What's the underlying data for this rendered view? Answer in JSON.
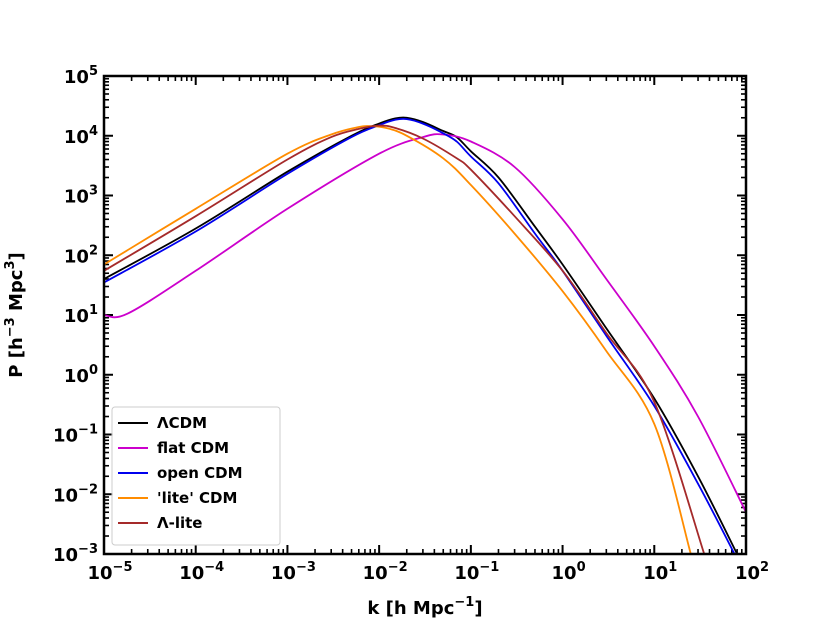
{
  "chart_data": {
    "type": "line",
    "xscale": "log",
    "yscale": "log",
    "xlim": [
      1e-05,
      100
    ],
    "ylim": [
      0.001,
      100000
    ],
    "xlabel": "k [h Mpc^-1]",
    "ylabel": "P [h^-3 Mpc^3]",
    "xlabel_parts": {
      "base": "k [h Mpc",
      "sup": "−1",
      "tail": "]"
    },
    "ylabel_parts": {
      "base": "P [h",
      "sup1": "−3",
      "mid": " Mpc",
      "sup2": "3",
      "tail": "]"
    },
    "xticks": [
      {
        "value": 1e-05,
        "base": "10",
        "exp": "−5"
      },
      {
        "value": 0.0001,
        "base": "10",
        "exp": "−4"
      },
      {
        "value": 0.001,
        "base": "10",
        "exp": "−3"
      },
      {
        "value": 0.01,
        "base": "10",
        "exp": "−2"
      },
      {
        "value": 0.1,
        "base": "10",
        "exp": "−1"
      },
      {
        "value": 1,
        "base": "10",
        "exp": "0"
      },
      {
        "value": 10,
        "base": "10",
        "exp": "1"
      },
      {
        "value": 100,
        "base": "10",
        "exp": "2"
      }
    ],
    "yticks": [
      {
        "value": 0.001,
        "base": "10",
        "exp": "−3"
      },
      {
        "value": 0.01,
        "base": "10",
        "exp": "−2"
      },
      {
        "value": 0.1,
        "base": "10",
        "exp": "−1"
      },
      {
        "value": 1,
        "base": "10",
        "exp": "0"
      },
      {
        "value": 10,
        "base": "10",
        "exp": "1"
      },
      {
        "value": 100,
        "base": "10",
        "exp": "2"
      },
      {
        "value": 1000,
        "base": "10",
        "exp": "3"
      },
      {
        "value": 10000,
        "base": "10",
        "exp": "4"
      },
      {
        "value": 100000,
        "base": "10",
        "exp": "5"
      }
    ],
    "grid": false,
    "legend_position": "lower-left",
    "series": [
      {
        "name": "ΛCDM",
        "color": "#000000",
        "points": [
          [
            1e-05,
            40
          ],
          [
            0.0001,
            280
          ],
          [
            0.001,
            2500
          ],
          [
            0.005,
            10000
          ],
          [
            0.01,
            16000
          ],
          [
            0.015,
            19500
          ],
          [
            0.02,
            20000
          ],
          [
            0.03,
            17000
          ],
          [
            0.05,
            12000
          ],
          [
            0.07,
            9500
          ],
          [
            0.1,
            5500
          ],
          [
            0.2,
            2000
          ],
          [
            0.5,
            300
          ],
          [
            1,
            70
          ],
          [
            3,
            6
          ],
          [
            10,
            0.4
          ],
          [
            30,
            0.02
          ],
          [
            80,
            0.001
          ]
        ]
      },
      {
        "name": "flat CDM",
        "color": "#cc00cc",
        "points": [
          [
            1e-05,
            10
          ],
          [
            1.8e-05,
            10.5
          ],
          [
            0.0001,
            55
          ],
          [
            0.001,
            600
          ],
          [
            0.01,
            5000
          ],
          [
            0.03,
            9500
          ],
          [
            0.05,
            10500
          ],
          [
            0.1,
            8000
          ],
          [
            0.3,
            3000
          ],
          [
            1,
            400
          ],
          [
            3,
            40
          ],
          [
            10,
            3
          ],
          [
            30,
            0.2
          ],
          [
            100,
            0.005
          ]
        ]
      },
      {
        "name": "open CDM",
        "color": "#0000ee",
        "points": [
          [
            1e-05,
            35
          ],
          [
            0.0001,
            250
          ],
          [
            0.001,
            2300
          ],
          [
            0.005,
            9500
          ],
          [
            0.01,
            15000
          ],
          [
            0.015,
            18500
          ],
          [
            0.02,
            19000
          ],
          [
            0.03,
            16000
          ],
          [
            0.05,
            11000
          ],
          [
            0.07,
            8000
          ],
          [
            0.1,
            4500
          ],
          [
            0.2,
            1600
          ],
          [
            0.5,
            230
          ],
          [
            1,
            55
          ],
          [
            3,
            4.5
          ],
          [
            10,
            0.3
          ],
          [
            30,
            0.015
          ],
          [
            75,
            0.001
          ]
        ]
      },
      {
        "name": "'lite' CDM",
        "color": "#ff8c00",
        "points": [
          [
            1e-05,
            70
          ],
          [
            0.0001,
            600
          ],
          [
            0.001,
            5000
          ],
          [
            0.003,
            10500
          ],
          [
            0.006,
            14000
          ],
          [
            0.008,
            14500
          ],
          [
            0.012,
            13500
          ],
          [
            0.02,
            10000
          ],
          [
            0.05,
            4200
          ],
          [
            0.1,
            1500
          ],
          [
            0.3,
            230
          ],
          [
            1,
            25
          ],
          [
            3,
            2.5
          ],
          [
            10,
            0.15
          ],
          [
            25,
            0.001
          ]
        ]
      },
      {
        "name": "Λ-lite",
        "color": "#a52a2a",
        "points": [
          [
            1e-05,
            55
          ],
          [
            0.0001,
            450
          ],
          [
            0.001,
            4000
          ],
          [
            0.003,
            9500
          ],
          [
            0.006,
            13000
          ],
          [
            0.01,
            14800
          ],
          [
            0.015,
            13500
          ],
          [
            0.03,
            9000
          ],
          [
            0.07,
            4200
          ],
          [
            0.1,
            2700
          ],
          [
            0.3,
            450
          ],
          [
            1,
            55
          ],
          [
            3,
            5
          ],
          [
            10,
            0.35
          ],
          [
            35,
            0.001
          ]
        ]
      }
    ]
  }
}
